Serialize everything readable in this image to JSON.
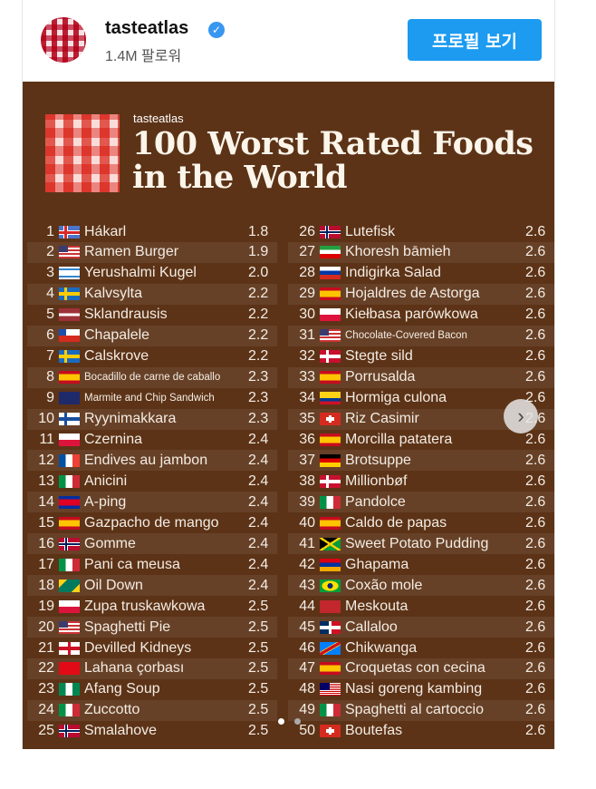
{
  "header": {
    "username": "tasteatlas",
    "verified_icon": "verified-badge-icon",
    "followers": "1.4M 팔로워",
    "profile_button": "프로필 보기"
  },
  "poster": {
    "brand": "tasteatlas",
    "title_line1": "100 Worst Rated Foods",
    "title_line2": "in the World"
  },
  "foods": [
    {
      "rank": "1",
      "flag": "IS",
      "name": "Hákarl",
      "rating": "1.8"
    },
    {
      "rank": "2",
      "flag": "US",
      "name": "Ramen Burger",
      "rating": "1.9"
    },
    {
      "rank": "3",
      "flag": "IL",
      "name": "Yerushalmi Kugel",
      "rating": "2.0"
    },
    {
      "rank": "4",
      "flag": "SE",
      "name": "Kalvsylta",
      "rating": "2.2"
    },
    {
      "rank": "5",
      "flag": "LV",
      "name": "Sklandrausis",
      "rating": "2.2"
    },
    {
      "rank": "6",
      "flag": "CL",
      "name": "Chapalele",
      "rating": "2.2"
    },
    {
      "rank": "7",
      "flag": "SE",
      "name": "Calskrove",
      "rating": "2.2"
    },
    {
      "rank": "8",
      "flag": "ES",
      "name": "Bocadillo de carne de caballo",
      "rating": "2.3",
      "small": true
    },
    {
      "rank": "9",
      "flag": "NZ",
      "name": "Marmite and Chip Sandwich",
      "rating": "2.3",
      "small": true
    },
    {
      "rank": "10",
      "flag": "FI",
      "name": "Ryynimakkara",
      "rating": "2.3"
    },
    {
      "rank": "11",
      "flag": "PL",
      "name": "Czernina",
      "rating": "2.4"
    },
    {
      "rank": "12",
      "flag": "FR",
      "name": "Endives au jambon",
      "rating": "2.4"
    },
    {
      "rank": "13",
      "flag": "IT",
      "name": "Anicini",
      "rating": "2.4"
    },
    {
      "rank": "14",
      "flag": "KH",
      "name": "A-ping",
      "rating": "2.4"
    },
    {
      "rank": "15",
      "flag": "ES",
      "name": "Gazpacho de mango",
      "rating": "2.4"
    },
    {
      "rank": "16",
      "flag": "NO",
      "name": "Gomme",
      "rating": "2.4"
    },
    {
      "rank": "17",
      "flag": "IT",
      "name": "Pani ca meusa",
      "rating": "2.4"
    },
    {
      "rank": "18",
      "flag": "GD",
      "name": "Oil Down",
      "rating": "2.4"
    },
    {
      "rank": "19",
      "flag": "PL",
      "name": "Zupa truskawkowa",
      "rating": "2.5"
    },
    {
      "rank": "20",
      "flag": "US",
      "name": "Spaghetti Pie",
      "rating": "2.5"
    },
    {
      "rank": "21",
      "flag": "ENG",
      "name": "Devilled Kidneys",
      "rating": "2.5"
    },
    {
      "rank": "22",
      "flag": "TR",
      "name": "Lahana çorbası",
      "rating": "2.5"
    },
    {
      "rank": "23",
      "flag": "NG",
      "name": "Afang Soup",
      "rating": "2.5"
    },
    {
      "rank": "24",
      "flag": "IT",
      "name": "Zuccotto",
      "rating": "2.5"
    },
    {
      "rank": "25",
      "flag": "NO",
      "name": "Smalahove",
      "rating": "2.5"
    },
    {
      "rank": "26",
      "flag": "NO",
      "name": "Lutefisk",
      "rating": "2.6"
    },
    {
      "rank": "27",
      "flag": "IR",
      "name": "Khoresh bāmieh",
      "rating": "2.6"
    },
    {
      "rank": "28",
      "flag": "RU",
      "name": "Indigirka Salad",
      "rating": "2.6"
    },
    {
      "rank": "29",
      "flag": "ES",
      "name": "Hojaldres de Astorga",
      "rating": "2.6"
    },
    {
      "rank": "30",
      "flag": "PL",
      "name": "Kiełbasa parówkowa",
      "rating": "2.6"
    },
    {
      "rank": "31",
      "flag": "US",
      "name": "Chocolate-Covered Bacon",
      "rating": "2.6",
      "small": true
    },
    {
      "rank": "32",
      "flag": "DK",
      "name": "Stegte sild",
      "rating": "2.6"
    },
    {
      "rank": "33",
      "flag": "ES",
      "name": "Porrusalda",
      "rating": "2.6"
    },
    {
      "rank": "34",
      "flag": "CO",
      "name": "Hormiga culona",
      "rating": "2.6"
    },
    {
      "rank": "35",
      "flag": "CH",
      "name": "Riz Casimir",
      "rating": "2.6"
    },
    {
      "rank": "36",
      "flag": "ES",
      "name": "Morcilla patatera",
      "rating": "2.6"
    },
    {
      "rank": "37",
      "flag": "DE",
      "name": "Brotsuppe",
      "rating": "2.6"
    },
    {
      "rank": "38",
      "flag": "DK",
      "name": "Millionbøf",
      "rating": "2.6"
    },
    {
      "rank": "39",
      "flag": "IT",
      "name": "Pandolce",
      "rating": "2.6"
    },
    {
      "rank": "40",
      "flag": "ES",
      "name": "Caldo de papas",
      "rating": "2.6"
    },
    {
      "rank": "41",
      "flag": "JM",
      "name": "Sweet Potato Pudding",
      "rating": "2.6"
    },
    {
      "rank": "42",
      "flag": "AM",
      "name": "Ghapama",
      "rating": "2.6"
    },
    {
      "rank": "43",
      "flag": "BR",
      "name": "Coxão mole",
      "rating": "2.6"
    },
    {
      "rank": "44",
      "flag": "MA",
      "name": "Meskouta",
      "rating": "2.6"
    },
    {
      "rank": "45",
      "flag": "DO",
      "name": "Callaloo",
      "rating": "2.6"
    },
    {
      "rank": "46",
      "flag": "CD",
      "name": "Chikwanga",
      "rating": "2.6"
    },
    {
      "rank": "47",
      "flag": "ES",
      "name": "Croquetas con cecina",
      "rating": "2.6"
    },
    {
      "rank": "48",
      "flag": "MY",
      "name": "Nasi goreng kambing",
      "rating": "2.6"
    },
    {
      "rank": "49",
      "flag": "IT",
      "name": "Spaghetti al cartoccio",
      "rating": "2.6"
    },
    {
      "rank": "50",
      "flag": "CH",
      "name": "Boutefas",
      "rating": "2.6"
    }
  ],
  "carousel": {
    "next_icon": "chevron-right-icon",
    "next_glyph": "›",
    "total_slides": 2,
    "active_slide": 1
  }
}
